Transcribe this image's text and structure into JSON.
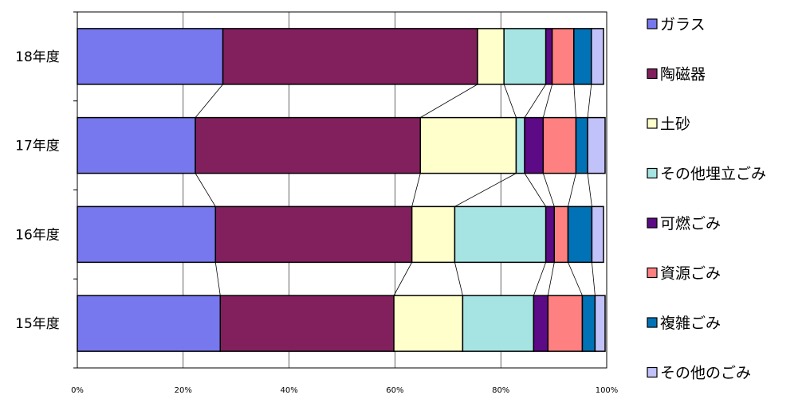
{
  "chart_data": {
    "type": "bar",
    "orientation": "horizontal",
    "stacked": "100%",
    "categories": [
      "18年度",
      "17年度",
      "16年度",
      "15年度"
    ],
    "series": [
      {
        "name": "ガラス",
        "color": "#7777ee",
        "values": [
          27.5,
          22.3,
          26.1,
          27.0
        ]
      },
      {
        "name": "陶磁器",
        "color": "#82205e",
        "values": [
          48.1,
          42.5,
          37.1,
          32.8
        ]
      },
      {
        "name": "土砂",
        "color": "#ffffcc",
        "values": [
          5.0,
          18.1,
          8.1,
          13.0
        ]
      },
      {
        "name": "その他埋立ごみ",
        "color": "#a6e4e4",
        "values": [
          7.9,
          1.6,
          17.2,
          13.4
        ]
      },
      {
        "name": "可燃ごみ",
        "color": "#5c0a86",
        "values": [
          1.2,
          3.5,
          1.6,
          2.7
        ]
      },
      {
        "name": "資源ごみ",
        "color": "#ff8080",
        "values": [
          4.1,
          6.2,
          2.6,
          6.5
        ]
      },
      {
        "name": "複雑ごみ",
        "color": "#0272b6",
        "values": [
          3.3,
          2.2,
          4.5,
          2.4
        ]
      },
      {
        "name": "その他のごみ",
        "color": "#c2c2fa",
        "values": [
          2.3,
          3.3,
          2.2,
          1.9
        ]
      }
    ],
    "xticks": [
      "0%",
      "20%",
      "40%",
      "60%",
      "80%",
      "100%"
    ],
    "xlim": [
      0,
      100
    ],
    "grid": "vertical",
    "series_lines": true,
    "legend": "right"
  }
}
